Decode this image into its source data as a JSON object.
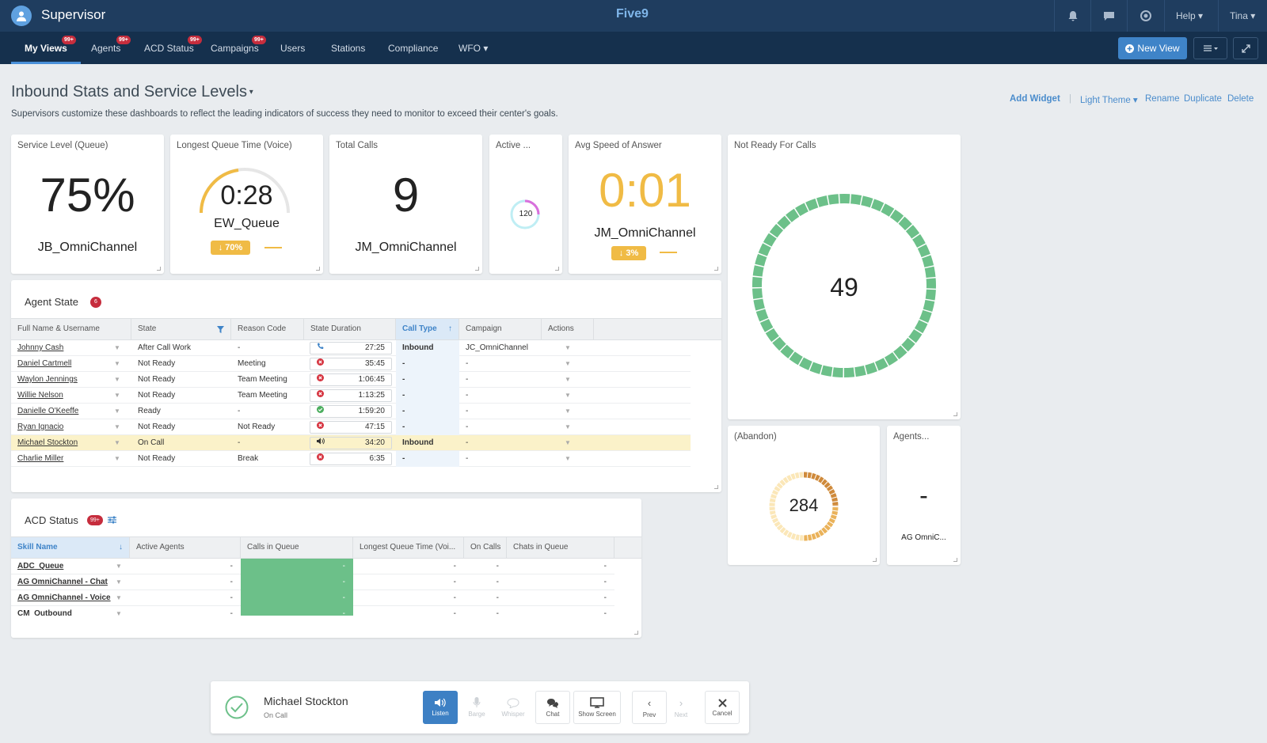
{
  "header": {
    "app_title": "Supervisor",
    "logo": "Five9",
    "help": "Help",
    "user": "Tina"
  },
  "nav": {
    "items": [
      "My Views",
      "Agents",
      "ACD Status",
      "Campaigns",
      "Users",
      "Stations",
      "Compliance",
      "WFO"
    ],
    "badge": "99+",
    "new_view": "New View"
  },
  "page": {
    "title": "Inbound Stats and Service Levels",
    "subtitle": "Supervisors customize these dashboards to reflect the leading indicators of success they need to monitor to exceed their center's goals.",
    "actions": [
      "Add Widget",
      "Light Theme",
      "Rename",
      "Duplicate",
      "Delete"
    ]
  },
  "widgets": {
    "service_level": {
      "title": "Service Level (Queue)",
      "value": "75%",
      "label": "JB_OmniChannel"
    },
    "longest_queue": {
      "title": "Longest Queue Time (Voice)",
      "value": "0:28",
      "label": "EW_Queue",
      "trend": "70%"
    },
    "total_calls": {
      "title": "Total Calls",
      "value": "9",
      "label": "JM_OmniChannel"
    },
    "active": {
      "title": "Active ...",
      "value": "120"
    },
    "avg_speed": {
      "title": "Avg Speed of Answer",
      "value": "0:01",
      "label": "JM_OmniChannel",
      "trend": "3%"
    },
    "not_ready": {
      "title": "Not Ready For Calls",
      "value": "49"
    },
    "abandon": {
      "title": "(Abandon)",
      "value": "284"
    },
    "agents": {
      "title": "Agents...",
      "value": "-",
      "label": "AG OmniC..."
    }
  },
  "agent_state": {
    "title": "Agent State",
    "badge": "6",
    "columns": [
      "Full Name & Username",
      "State",
      "Reason Code",
      "State Duration",
      "Call Type",
      "Campaign",
      "Actions"
    ],
    "rows": [
      {
        "name": "Johnny Cash",
        "state": "After Call Work",
        "reason": "-",
        "duration": "27:25",
        "icon": "phone-icon",
        "call_type": "Inbound",
        "campaign": "JC_OmniChannel"
      },
      {
        "name": "Daniel Cartmell",
        "state": "Not Ready",
        "reason": "Meeting",
        "duration": "35:45",
        "icon": "not-ready-icon",
        "call_type": "-",
        "campaign": "-"
      },
      {
        "name": "Waylon Jennings",
        "state": "Not Ready",
        "reason": "Team Meeting",
        "duration": "1:06:45",
        "icon": "not-ready-icon",
        "call_type": "-",
        "campaign": "-"
      },
      {
        "name": "Willie Nelson",
        "state": "Not Ready",
        "reason": "Team Meeting",
        "duration": "1:13:25",
        "icon": "not-ready-icon",
        "call_type": "-",
        "campaign": "-"
      },
      {
        "name": "Danielle O'Keeffe",
        "state": "Ready",
        "reason": "-",
        "duration": "1:59:20",
        "icon": "ready-icon",
        "call_type": "-",
        "campaign": "-"
      },
      {
        "name": "Ryan Ignacio",
        "state": "Not Ready",
        "reason": "Not Ready",
        "duration": "47:15",
        "icon": "not-ready-icon",
        "call_type": "-",
        "campaign": "-"
      },
      {
        "name": "Michael Stockton",
        "state": "On Call",
        "reason": "-",
        "duration": "34:20",
        "icon": "speaker-icon",
        "call_type": "Inbound",
        "campaign": "-"
      },
      {
        "name": "Charlie Miller",
        "state": "Not Ready",
        "reason": "Break",
        "duration": "6:35",
        "icon": "not-ready-icon",
        "call_type": "-",
        "campaign": "-"
      }
    ]
  },
  "acd_status": {
    "title": "ACD Status",
    "badge": "99+",
    "columns": [
      "Skill Name",
      "Active Agents",
      "Calls in Queue",
      "Longest Queue Time (Voi...",
      "On Calls",
      "Chats in Queue"
    ],
    "rows": [
      {
        "skill": "ADC_Queue",
        "active": "-",
        "calls": "-",
        "longest": "-",
        "on_calls": "-",
        "chats": "-"
      },
      {
        "skill": "AG OmniChannel - Chat",
        "active": "-",
        "calls": "-",
        "longest": "-",
        "on_calls": "-",
        "chats": "-"
      },
      {
        "skill": "AG OmniChannel - Voice",
        "active": "-",
        "calls": "-",
        "longest": "-",
        "on_calls": "-",
        "chats": "-"
      },
      {
        "skill": "CM_Outbound",
        "active": "-",
        "calls": "-",
        "longest": "-",
        "on_calls": "-",
        "chats": "-"
      }
    ]
  },
  "monitor": {
    "name": "Michael Stockton",
    "status": "On Call",
    "controls": [
      "Listen",
      "Barge",
      "Whisper",
      "Chat",
      "Show Screen",
      "Prev",
      "Next",
      "Cancel"
    ]
  },
  "colors": {
    "accent": "#3f84c8",
    "green": "#6cc089",
    "amber": "#f0bb45",
    "badge": "#c62d3d"
  }
}
